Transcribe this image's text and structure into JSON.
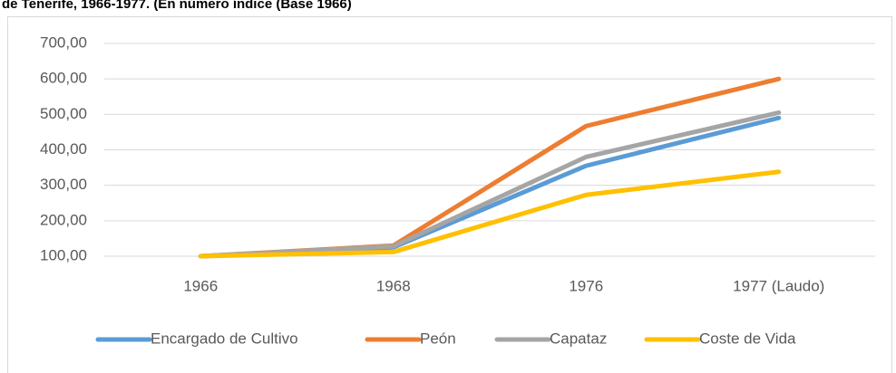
{
  "chart_data": {
    "type": "line",
    "title": "de Tenerife, 1966-1977. (En número índice (Base 1966)",
    "categories": [
      "1966",
      "1968",
      "1976",
      "1977 (Laudo)"
    ],
    "series": [
      {
        "name": "Encargado de Cultivo",
        "color": "#5b9bd5",
        "values": [
          100,
          125,
          355,
          490
        ]
      },
      {
        "name": "Peón",
        "color": "#ed7d31",
        "values": [
          100,
          130,
          467,
          600
        ]
      },
      {
        "name": "Capataz",
        "color": "#a5a5a5",
        "values": [
          100,
          128,
          380,
          505
        ]
      },
      {
        "name": "Coste de Vida",
        "color": "#ffc000",
        "values": [
          100,
          112,
          273,
          338
        ]
      }
    ],
    "ylim": [
      100,
      700
    ],
    "yticks": [
      {
        "value": 100,
        "label": "100,00"
      },
      {
        "value": 200,
        "label": "200,00"
      },
      {
        "value": 300,
        "label": "300,00"
      },
      {
        "value": 400,
        "label": "400,00"
      },
      {
        "value": 500,
        "label": "500,00"
      },
      {
        "value": 600,
        "label": "600,00"
      },
      {
        "value": 700,
        "label": "700,00"
      }
    ],
    "grid": true,
    "legend": "bottom"
  }
}
